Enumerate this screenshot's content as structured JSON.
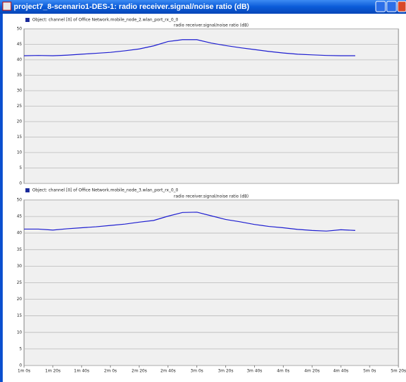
{
  "window_title": "project7_8-scenario1-DES-1: radio receiver.signal/noise ratio (dB)",
  "chart_data": [
    {
      "type": "line",
      "title": "radio receiver.signal/noise ratio (dB)",
      "x": [
        60,
        70,
        80,
        90,
        100,
        110,
        120,
        130,
        140,
        150,
        160,
        170,
        180,
        190,
        200,
        210,
        220,
        230,
        240,
        250,
        260,
        270,
        280,
        290
      ],
      "series": [
        {
          "name": "Object: channel [0] of Office Network.mobile_node_2.wlan_port_rx_0_0",
          "color": "#1a1ad0",
          "values": [
            41.3,
            41.4,
            41.3,
            41.5,
            41.8,
            42.1,
            42.4,
            42.9,
            43.5,
            44.5,
            45.9,
            46.5,
            46.5,
            45.4,
            44.6,
            43.9,
            43.3,
            42.7,
            42.2,
            41.8,
            41.6,
            41.4,
            41.3,
            41.3
          ]
        }
      ],
      "xlim": [
        60,
        320
      ],
      "ylim": [
        0,
        50
      ],
      "yticks": [
        0,
        5,
        10,
        15,
        20,
        25,
        30,
        35,
        40,
        45,
        50
      ],
      "grid": true
    },
    {
      "type": "line",
      "title": "radio receiver.signal/noise ratio (dB)",
      "x": [
        60,
        70,
        80,
        90,
        100,
        110,
        120,
        130,
        140,
        150,
        160,
        170,
        180,
        190,
        200,
        210,
        220,
        230,
        240,
        250,
        260,
        270,
        280,
        290
      ],
      "series": [
        {
          "name": "Object: channel [0] of Office Network.mobile_node_3.wlan_port_rx_0_0",
          "color": "#1a1ad0",
          "values": [
            41.2,
            41.2,
            40.9,
            41.3,
            41.6,
            41.9,
            42.3,
            42.7,
            43.3,
            43.8,
            45.1,
            46.2,
            46.3,
            45.2,
            44.1,
            43.4,
            42.6,
            42.0,
            41.6,
            41.1,
            40.8,
            40.6,
            41.0,
            40.8
          ]
        }
      ],
      "xlim": [
        60,
        320
      ],
      "ylim": [
        0,
        50
      ],
      "yticks": [
        0,
        5,
        10,
        15,
        20,
        25,
        30,
        35,
        40,
        45,
        50
      ],
      "xticks": [
        {
          "value": 60,
          "label": "1m 0s"
        },
        {
          "value": 80,
          "label": "1m 20s"
        },
        {
          "value": 100,
          "label": "1m 40s"
        },
        {
          "value": 120,
          "label": "2m 0s"
        },
        {
          "value": 140,
          "label": "2m 20s"
        },
        {
          "value": 160,
          "label": "2m 40s"
        },
        {
          "value": 180,
          "label": "3m 0s"
        },
        {
          "value": 200,
          "label": "3m 20s"
        },
        {
          "value": 220,
          "label": "3m 40s"
        },
        {
          "value": 240,
          "label": "4m 0s"
        },
        {
          "value": 260,
          "label": "4m 20s"
        },
        {
          "value": 280,
          "label": "4m 40s"
        },
        {
          "value": 300,
          "label": "5m 0s"
        },
        {
          "value": 320,
          "label": "5m 20s"
        }
      ],
      "grid": true
    }
  ]
}
